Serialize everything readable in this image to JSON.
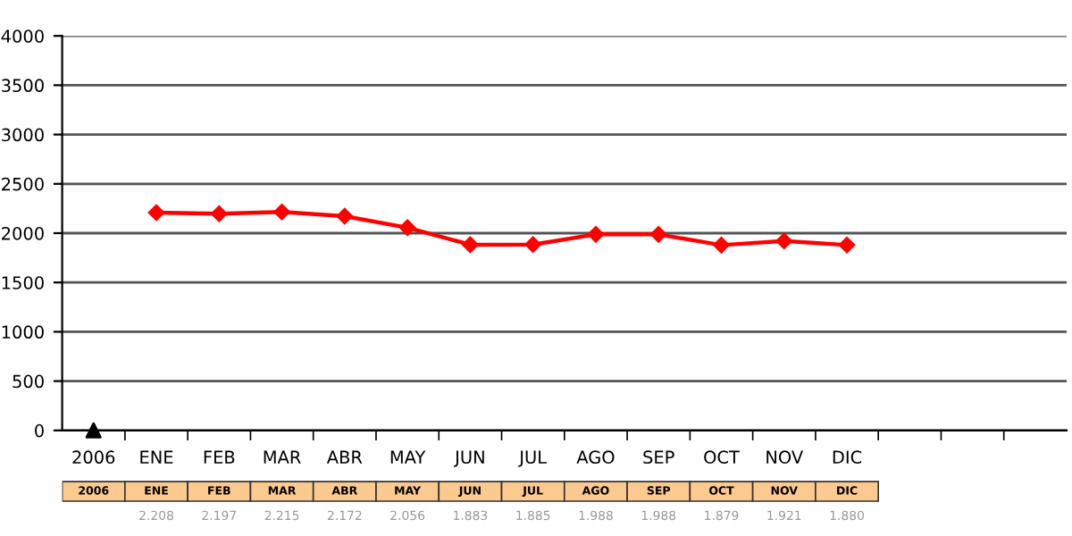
{
  "chart_data": {
    "type": "line",
    "categories": [
      "2006",
      "ENE",
      "FEB",
      "MAR",
      "ABR",
      "MAY",
      "JUN",
      "JUL",
      "AGO",
      "SEP",
      "OCT",
      "NOV",
      "DIC",
      null,
      null,
      null
    ],
    "series": [
      {
        "color": "#ff0000",
        "marker": "diamond",
        "values": [
          null,
          2208,
          2197,
          2215,
          2172,
          2056,
          1883,
          1885,
          1988,
          1988,
          1879,
          1921,
          1880,
          null,
          null,
          null
        ],
        "value_labels": [
          null,
          "2.208",
          "2.197",
          "2.215",
          "2.172",
          "2.056",
          "1.883",
          "1.885",
          "1.988",
          "1.988",
          "1.879",
          "1.921",
          "1.880",
          null,
          null,
          null
        ]
      },
      {
        "type": "scatter",
        "color": "#000000",
        "marker": "triangle",
        "values": [
          0,
          null,
          null,
          null,
          null,
          null,
          null,
          null,
          null,
          null,
          null,
          null,
          null,
          null,
          null,
          null
        ]
      }
    ],
    "ylim": [
      0,
      4000
    ],
    "yticks": [
      0,
      500,
      1000,
      1500,
      2000,
      2500,
      3000,
      3500,
      4000
    ],
    "grid": "y",
    "legend": false
  }
}
